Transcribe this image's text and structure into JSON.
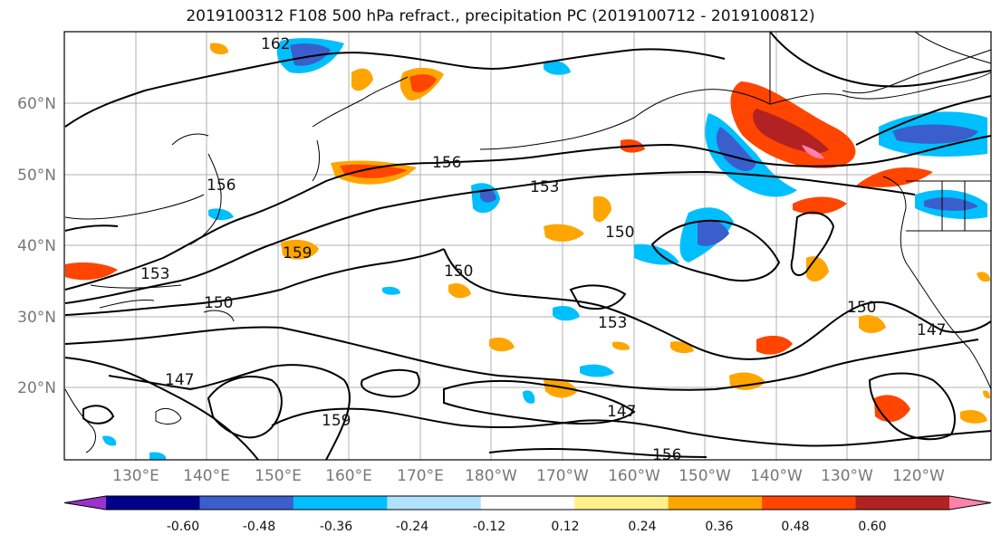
{
  "title": "2019100312 F108 500 hPa refract., precipitation PC (2019100712 - 2019100812)",
  "lat_labels": [
    "60°N",
    "50°N",
    "40°N",
    "30°N",
    "20°N"
  ],
  "lon_labels": [
    "130°E",
    "140°E",
    "150°E",
    "160°E",
    "170°E",
    "180°W",
    "170°W",
    "160°W",
    "150°W",
    "140°W",
    "130°W",
    "120°W"
  ],
  "contour_labels": [
    "162",
    "156",
    "153",
    "150",
    "147",
    "159",
    "150",
    "153",
    "156",
    "150",
    "147",
    "159",
    "156",
    "153",
    "150",
    "147"
  ],
  "colorbar": {
    "colors": [
      "#9a32cd",
      "#00008b",
      "#3a5fcd",
      "#00bfff",
      "#b0e2ff",
      "#ffffff",
      "#fff08c",
      "#ffa500",
      "#ff4500",
      "#b22222",
      "#ff82ab"
    ],
    "tick_labels": [
      "-0.60",
      "-0.48",
      "-0.36",
      "-0.24",
      "-0.12",
      "0.12",
      "0.24",
      "0.36",
      "0.48",
      "0.60"
    ]
  }
}
